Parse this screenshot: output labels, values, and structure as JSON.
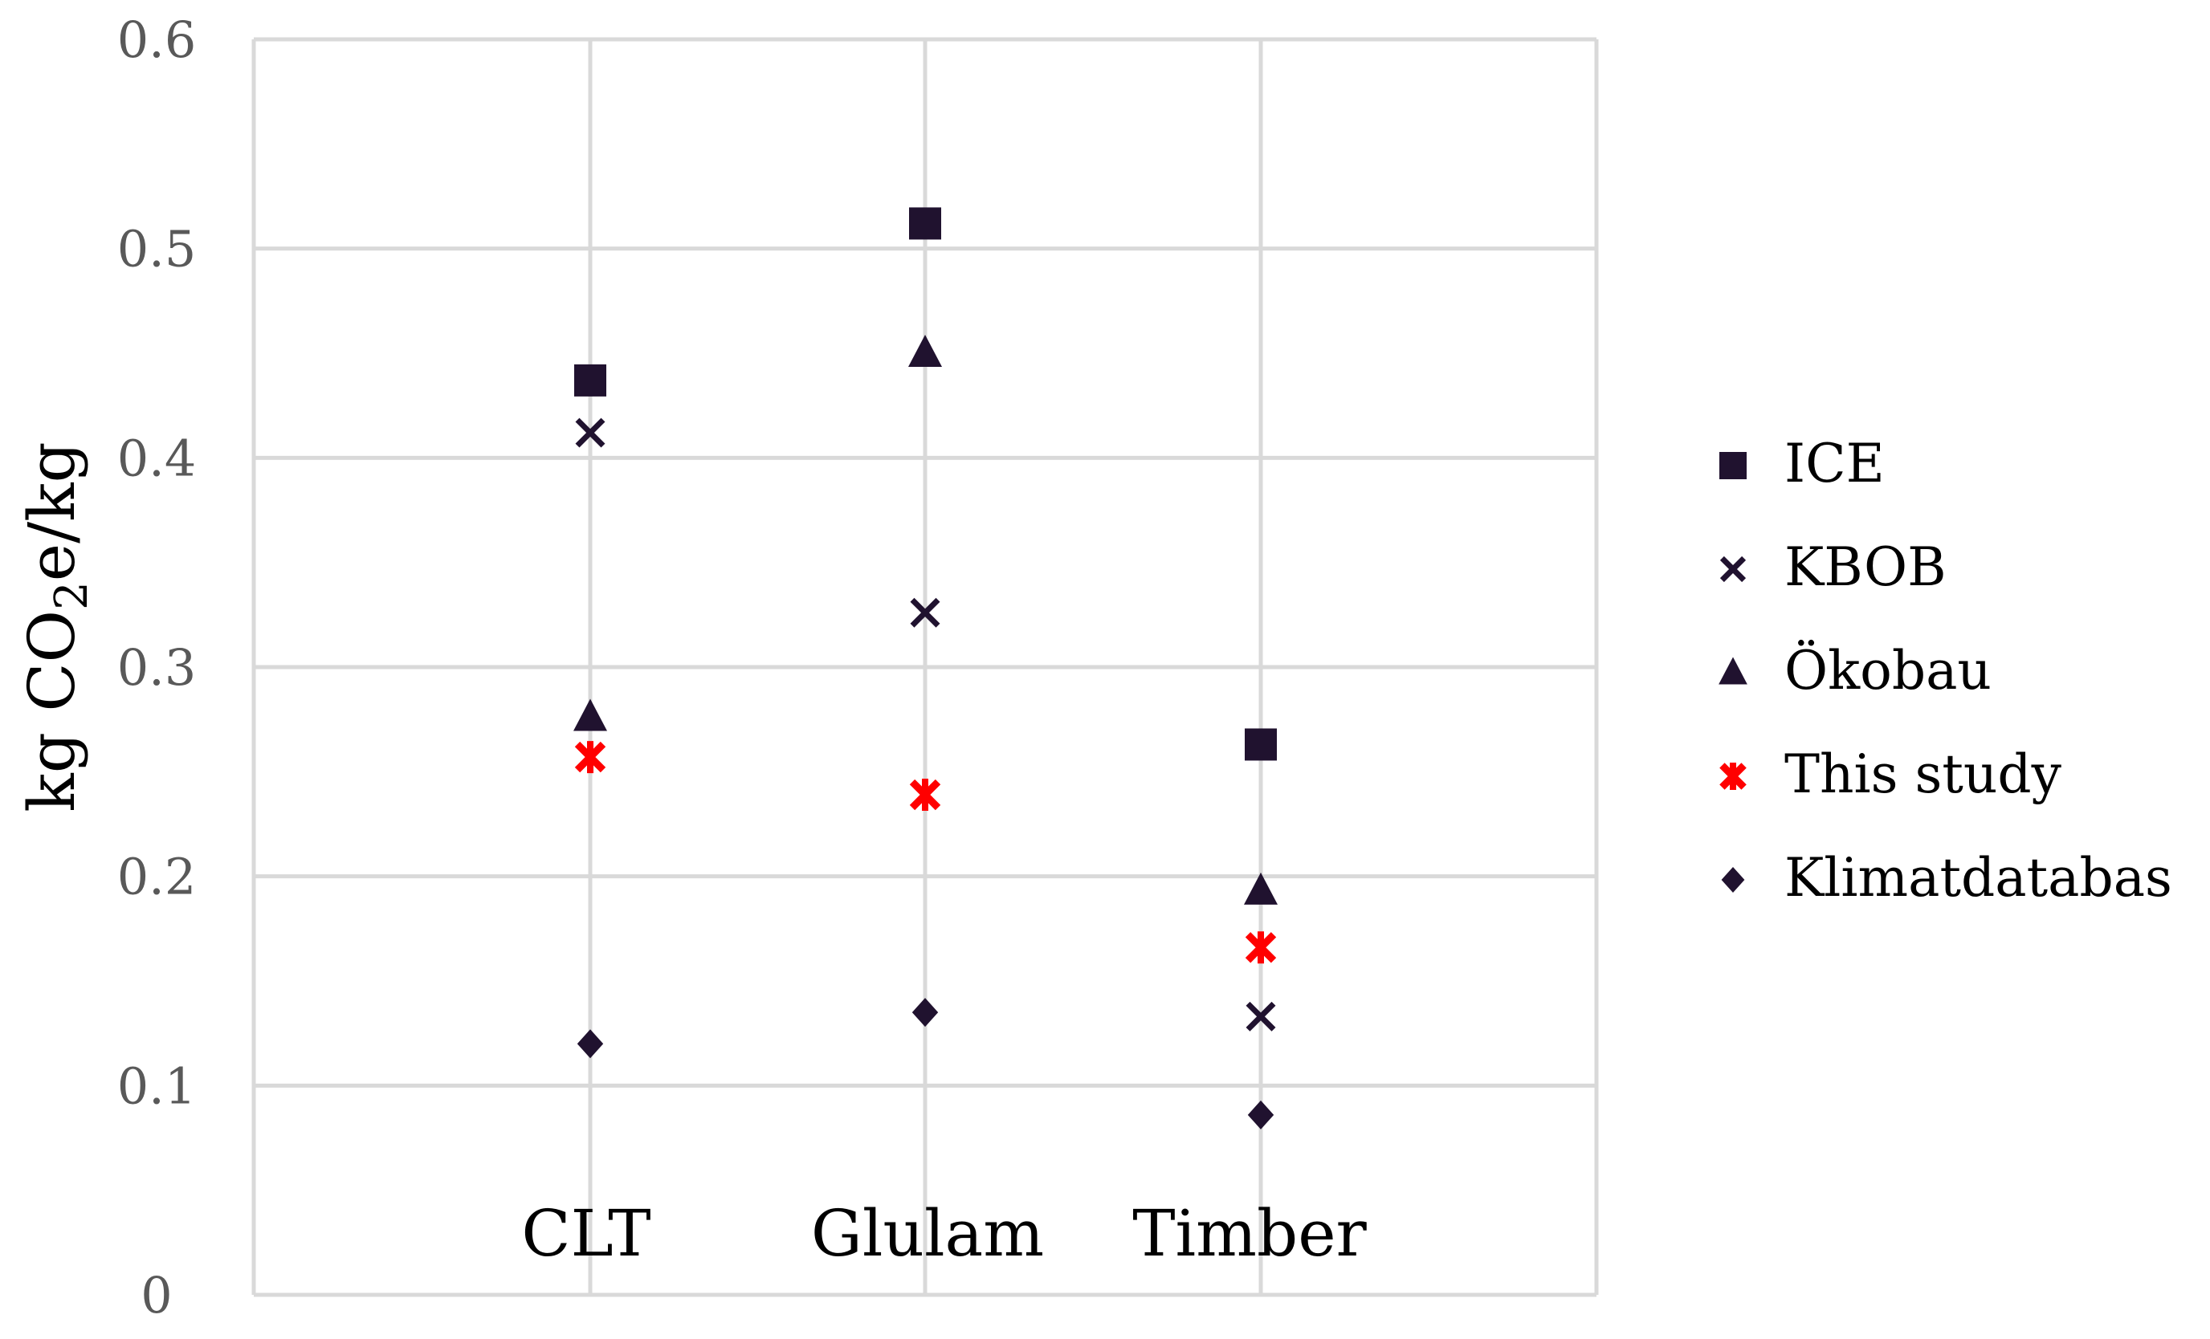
{
  "chart_data": {
    "type": "scatter",
    "title": "",
    "xlabel": "",
    "ylabel": {
      "prefix": "kg CO",
      "subscript": "2",
      "suffix": "e/kg"
    },
    "ylim": [
      0,
      0.6
    ],
    "yticks": [
      "0",
      "0.1",
      "0.2",
      "0.3",
      "0.4",
      "0.5",
      "0.6"
    ],
    "categories": [
      "CLT",
      "Glulam",
      "Timber"
    ],
    "grid": true,
    "legend_position": "right",
    "series": [
      {
        "name": "ICE",
        "marker": "square",
        "color": "#20122f",
        "values": [
          0.437,
          0.512,
          0.263
        ]
      },
      {
        "name": "KBOB",
        "marker": "x",
        "color": "#20122f",
        "values": [
          0.412,
          0.326,
          0.133
        ]
      },
      {
        "name": "Ökobau",
        "marker": "triangle",
        "color": "#20122f",
        "values": [
          0.276,
          0.45,
          0.193
        ]
      },
      {
        "name": "This study",
        "marker": "star",
        "color": "#ff0000",
        "values": [
          0.257,
          0.239,
          0.166
        ]
      },
      {
        "name": "Klimatdatabas",
        "marker": "diamond",
        "color": "#20122f",
        "values": [
          0.12,
          0.135,
          0.086
        ]
      }
    ]
  }
}
